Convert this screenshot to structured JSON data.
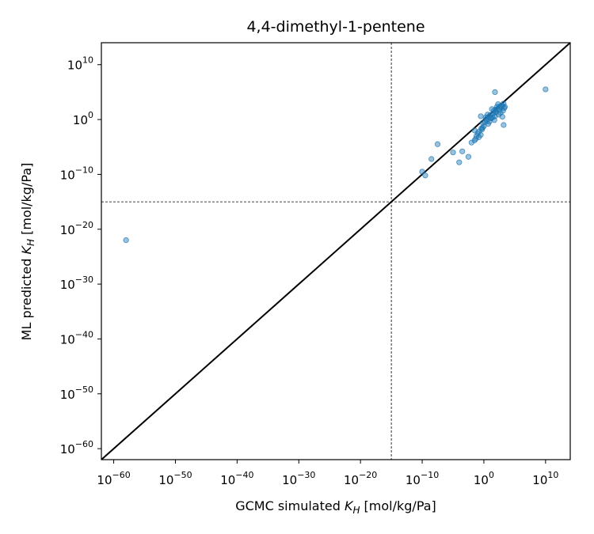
{
  "chart_data": {
    "type": "scatter",
    "title": "4,4-dimethyl-1-pentene",
    "xlabel": "GCMC simulated K_H [mol/kg/Pa]",
    "ylabel": "ML predicted K_H [mol/kg/Pa]",
    "xlabel_parts": {
      "pre": "GCMC simulated ",
      "sym": "K",
      "sub": "H",
      "post": " [mol/kg/Pa]"
    },
    "ylabel_parts": {
      "pre": "ML predicted ",
      "sym": "K",
      "sub": "H",
      "post": " [mol/kg/Pa]"
    },
    "x_scale": "log",
    "y_scale": "log",
    "xlim_exp": [
      -62,
      14
    ],
    "ylim_exp": [
      -62,
      14
    ],
    "x_ticks": [
      {
        "base": "10",
        "exp": "−60",
        "value_exp": -60
      },
      {
        "base": "10",
        "exp": "−50",
        "value_exp": -50
      },
      {
        "base": "10",
        "exp": "−40",
        "value_exp": -40
      },
      {
        "base": "10",
        "exp": "−30",
        "value_exp": -30
      },
      {
        "base": "10",
        "exp": "−20",
        "value_exp": -20
      },
      {
        "base": "10",
        "exp": "−10",
        "value_exp": -10
      },
      {
        "base": "10",
        "exp": "0",
        "value_exp": 0
      },
      {
        "base": "10",
        "exp": "10",
        "value_exp": 10
      }
    ],
    "y_ticks": [
      {
        "base": "10",
        "exp": "−60",
        "value_exp": -60
      },
      {
        "base": "10",
        "exp": "−50",
        "value_exp": -50
      },
      {
        "base": "10",
        "exp": "−40",
        "value_exp": -40
      },
      {
        "base": "10",
        "exp": "−30",
        "value_exp": -30
      },
      {
        "base": "10",
        "exp": "−20",
        "value_exp": -20
      },
      {
        "base": "10",
        "exp": "−10",
        "value_exp": -10
      },
      {
        "base": "10",
        "exp": "0",
        "value_exp": 0
      },
      {
        "base": "10",
        "exp": "10",
        "value_exp": 10
      }
    ],
    "reference_lines": {
      "diagonal": "y = x",
      "vertical_exp": -15,
      "horizontal_exp": -15
    },
    "series": [
      {
        "point_color": "#1f77b4",
        "points_log10": [
          [
            -58,
            -22
          ],
          [
            -7.5,
            -4.5
          ],
          [
            -10,
            -9.5
          ],
          [
            -9.5,
            -10.2
          ],
          [
            -8.5,
            -7.2
          ],
          [
            -5,
            -6
          ],
          [
            -4,
            -7.8
          ],
          [
            -3.5,
            -5.8
          ],
          [
            -2.5,
            -6.8
          ],
          [
            -2,
            -4.2
          ],
          [
            -1.5,
            -2
          ],
          [
            -1,
            -2.5
          ],
          [
            -0.8,
            -2.2
          ],
          [
            -0.5,
            -2.8
          ],
          [
            -1.2,
            -3
          ],
          [
            -0.3,
            -1.8
          ],
          [
            -0.2,
            -1.5
          ],
          [
            -0.8,
            -3.2
          ],
          [
            -1.5,
            -3.8
          ],
          [
            -1.3,
            -3.5
          ],
          [
            0,
            -1.2
          ],
          [
            0.2,
            -0.5
          ],
          [
            0.5,
            -0.2
          ],
          [
            0.8,
            0.5
          ],
          [
            1,
            0.8
          ],
          [
            1.2,
            0.2
          ],
          [
            1.5,
            1.1
          ],
          [
            1.8,
            0.6
          ],
          [
            2,
            1.4
          ],
          [
            2.3,
            2.8
          ],
          [
            2.5,
            1.8
          ],
          [
            2.8,
            2.2
          ],
          [
            3,
            2.5
          ],
          [
            3.2,
            2.9
          ],
          [
            -0.5,
            0.6
          ],
          [
            0.3,
            0.4
          ],
          [
            0.6,
            0.9
          ],
          [
            1.1,
            0.3
          ],
          [
            1.6,
            1.6
          ],
          [
            1.9,
            1.3
          ],
          [
            2.2,
            1.9
          ],
          [
            2.6,
            2.4
          ],
          [
            2.9,
            2.6
          ],
          [
            3.1,
            1.6
          ],
          [
            3.3,
            2.1
          ],
          [
            0.9,
            -0.4
          ],
          [
            1.4,
            0.4
          ],
          [
            2.4,
            0.9
          ],
          [
            1.7,
            -0.1
          ],
          [
            2.7,
            1.2
          ],
          [
            3.4,
            2.3
          ],
          [
            1.3,
            1.9
          ],
          [
            2.1,
            2.3
          ],
          [
            0.4,
            0.1
          ],
          [
            -0.2,
            -0.6
          ],
          [
            0.7,
            -0.8
          ],
          [
            -0.4,
            -1.6
          ],
          [
            1.9,
            1.8
          ],
          [
            3,
            0.5
          ],
          [
            3.2,
            -1
          ],
          [
            1.8,
            5
          ],
          [
            10,
            5.5
          ]
        ]
      }
    ]
  }
}
